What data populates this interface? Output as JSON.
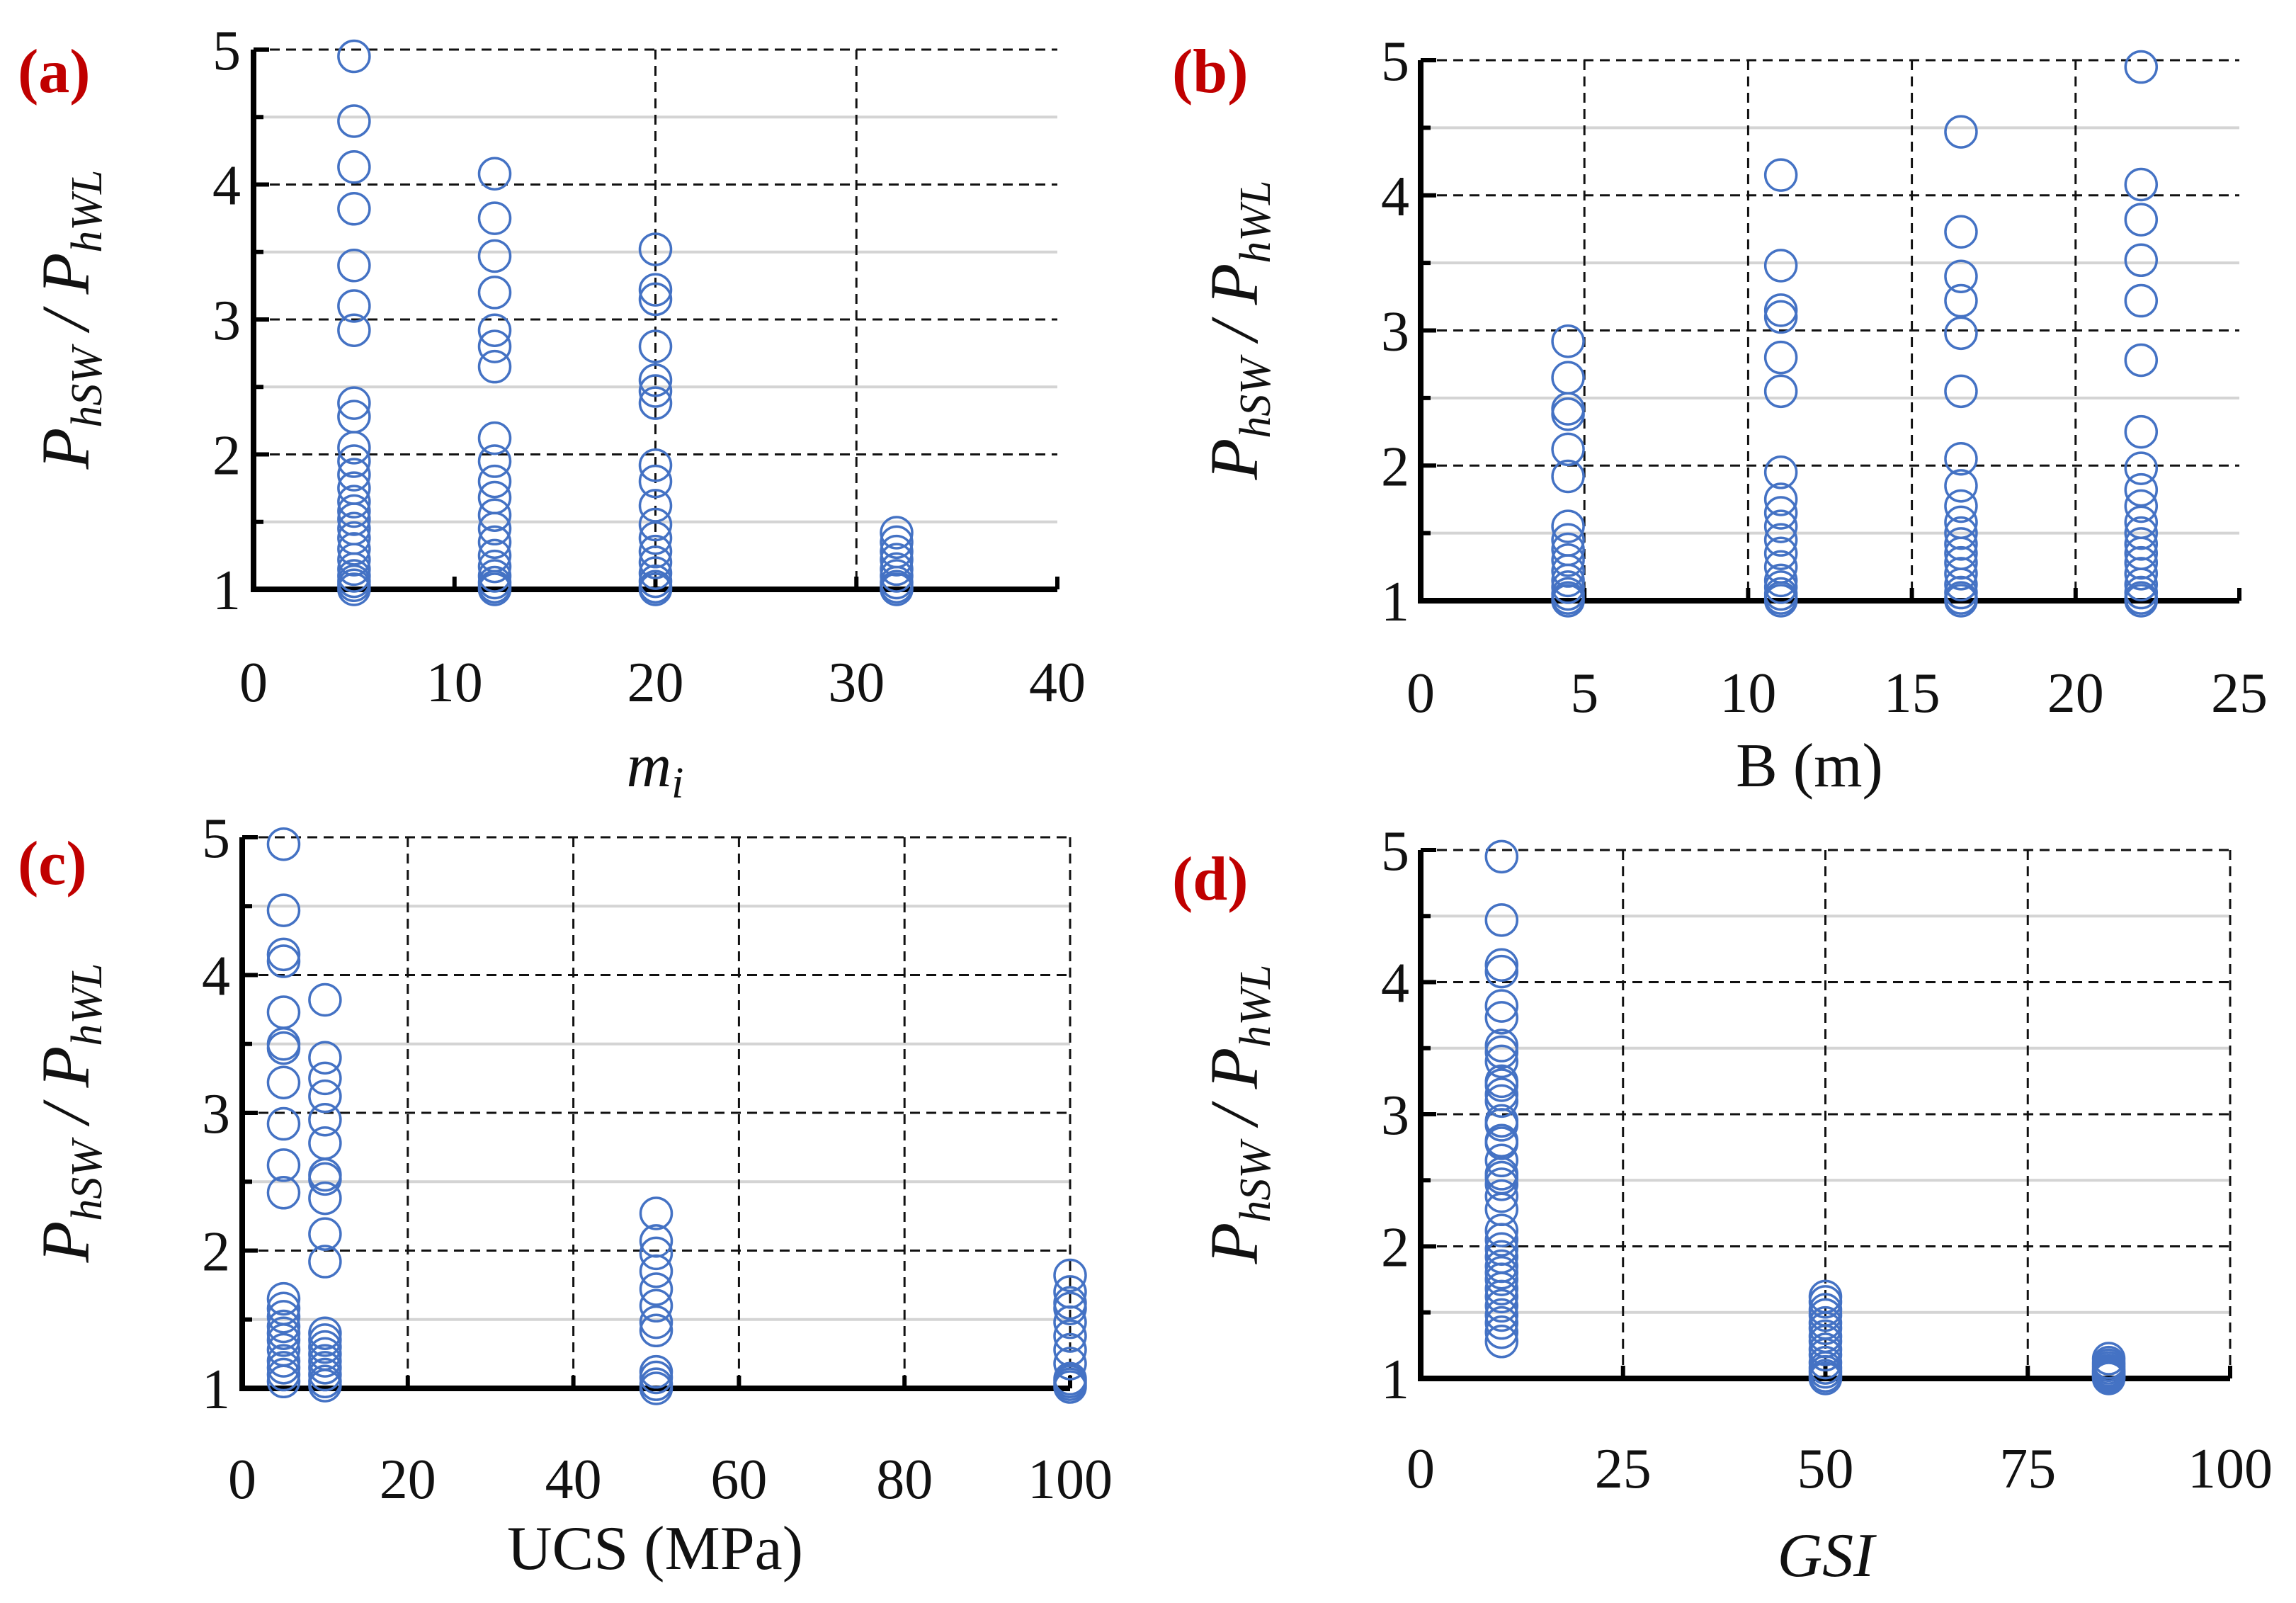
{
  "colors": {
    "marker": "#4472C4",
    "label": "#C00000",
    "axis": "#000000"
  },
  "chart_data": [
    {
      "id": "a",
      "type": "scatter",
      "panel_label": "(a)",
      "xlabel": "m",
      "xlabel_sub": "i",
      "xlabel_italic": true,
      "ylabel": {
        "p1": "P",
        "s1": "hSW",
        "sep": " / ",
        "p2": "P",
        "s2": "hWL"
      },
      "xlim": [
        0,
        40
      ],
      "ylim": [
        1,
        5
      ],
      "xticks": [
        0,
        10,
        20,
        30,
        40
      ],
      "yticks": [
        1,
        2,
        3,
        4,
        5
      ],
      "xgrid": [
        20,
        30
      ],
      "series": [
        {
          "x": 5,
          "y": [
            4.95,
            4.47,
            4.13,
            3.82,
            3.4,
            3.1,
            2.92,
            2.38,
            2.28,
            2.05,
            1.95,
            1.85,
            1.75,
            1.65,
            1.58,
            1.52,
            1.45,
            1.38,
            1.3,
            1.22,
            1.15,
            1.1,
            1.06,
            1.03,
            1.0
          ]
        },
        {
          "x": 12,
          "y": [
            4.08,
            3.75,
            3.47,
            3.2,
            2.92,
            2.8,
            2.65,
            2.12,
            1.95,
            1.8,
            1.68,
            1.55,
            1.45,
            1.35,
            1.25,
            1.17,
            1.1,
            1.05,
            1.02,
            1.0
          ]
        },
        {
          "x": 20,
          "y": [
            3.52,
            3.22,
            3.15,
            2.8,
            2.55,
            2.47,
            2.38,
            1.92,
            1.8,
            1.62,
            1.48,
            1.38,
            1.28,
            1.2,
            1.12,
            1.06,
            1.02,
            1.0
          ]
        },
        {
          "x": 32,
          "y": [
            1.42,
            1.35,
            1.28,
            1.22,
            1.15,
            1.1,
            1.05,
            1.02,
            1.0
          ]
        }
      ]
    },
    {
      "id": "b",
      "type": "scatter",
      "panel_label": "(b)",
      "xlabel": "B (m)",
      "xlabel_sub": "",
      "xlabel_italic": false,
      "ylabel": {
        "p1": "P",
        "s1": "hSW",
        "sep": " / ",
        "p2": "P",
        "s2": "hWL"
      },
      "xlim": [
        0,
        25
      ],
      "ylim": [
        1,
        5
      ],
      "xticks": [
        0,
        5,
        10,
        15,
        20,
        25
      ],
      "yticks": [
        1,
        2,
        3,
        4,
        5
      ],
      "xgrid": [
        5,
        10,
        15,
        20
      ],
      "series": [
        {
          "x": 4.5,
          "y": [
            2.92,
            2.65,
            2.42,
            2.38,
            2.12,
            1.92,
            1.55,
            1.45,
            1.38,
            1.3,
            1.22,
            1.15,
            1.1,
            1.05,
            1.02,
            1.0
          ]
        },
        {
          "x": 11,
          "y": [
            4.15,
            3.48,
            3.15,
            3.1,
            2.8,
            2.55,
            1.95,
            1.75,
            1.65,
            1.55,
            1.45,
            1.35,
            1.25,
            1.15,
            1.1,
            1.05,
            1.02,
            1.0
          ]
        },
        {
          "x": 16.5,
          "y": [
            4.47,
            3.73,
            3.4,
            3.22,
            2.98,
            2.55,
            2.05,
            1.85,
            1.7,
            1.58,
            1.5,
            1.42,
            1.35,
            1.28,
            1.2,
            1.12,
            1.06,
            1.02,
            1.0
          ]
        },
        {
          "x": 22,
          "y": [
            4.95,
            4.08,
            3.82,
            3.52,
            3.22,
            2.78,
            2.25,
            1.98,
            1.82,
            1.7,
            1.58,
            1.5,
            1.42,
            1.35,
            1.28,
            1.2,
            1.12,
            1.06,
            1.02,
            1.0
          ]
        }
      ]
    },
    {
      "id": "c",
      "type": "scatter",
      "panel_label": "(c)",
      "xlabel": "UCS (MPa)",
      "xlabel_sub": "",
      "xlabel_italic": false,
      "ylabel": {
        "p1": "P",
        "s1": "hSW",
        "sep": " / ",
        "p2": "P",
        "s2": "hWL"
      },
      "xlim": [
        0,
        100
      ],
      "ylim": [
        1,
        5
      ],
      "xticks": [
        0,
        20,
        40,
        60,
        80,
        100
      ],
      "yticks": [
        1,
        2,
        3,
        4,
        5
      ],
      "xgrid": [
        20,
        40,
        60,
        80,
        100
      ],
      "series": [
        {
          "x": 5,
          "y": [
            4.95,
            4.47,
            4.15,
            4.1,
            3.73,
            3.5,
            3.47,
            3.22,
            2.92,
            2.62,
            2.42,
            1.65,
            1.58,
            1.52,
            1.45,
            1.4,
            1.35,
            1.28,
            1.2,
            1.15,
            1.1,
            1.05
          ]
        },
        {
          "x": 10,
          "y": [
            3.82,
            3.4,
            3.25,
            3.12,
            2.95,
            2.78,
            2.55,
            2.52,
            2.38,
            2.12,
            1.92,
            1.4,
            1.35,
            1.3,
            1.25,
            1.2,
            1.15,
            1.1,
            1.05,
            1.02
          ]
        },
        {
          "x": 50,
          "y": [
            2.27,
            2.07,
            1.98,
            1.85,
            1.72,
            1.6,
            1.48,
            1.42,
            1.12,
            1.08,
            1.03,
            1.0
          ]
        },
        {
          "x": 100,
          "y": [
            1.82,
            1.7,
            1.62,
            1.58,
            1.48,
            1.38,
            1.28,
            1.18,
            1.07,
            1.05,
            1.03,
            1.01
          ]
        }
      ]
    },
    {
      "id": "d",
      "type": "scatter",
      "panel_label": "(d)",
      "xlabel": "GSI",
      "xlabel_sub": "",
      "xlabel_italic": true,
      "ylabel": {
        "p1": "P",
        "s1": "hSW",
        "sep": " / ",
        "p2": "P",
        "s2": "hWL"
      },
      "xlim": [
        0,
        100
      ],
      "ylim": [
        1,
        5
      ],
      "xticks": [
        0,
        25,
        50,
        75,
        100
      ],
      "yticks": [
        1,
        2,
        3,
        4,
        5
      ],
      "xgrid": [
        25,
        50,
        75,
        100
      ],
      "series": [
        {
          "x": 10,
          "y": [
            4.95,
            4.47,
            4.13,
            4.08,
            3.82,
            3.73,
            3.52,
            3.47,
            3.4,
            3.25,
            3.22,
            3.15,
            3.1,
            2.95,
            2.92,
            2.8,
            2.78,
            2.65,
            2.55,
            2.52,
            2.47,
            2.38,
            2.28,
            2.12,
            2.05,
            1.98,
            1.92,
            1.85,
            1.8,
            1.75,
            1.68,
            1.62,
            1.55,
            1.48,
            1.42,
            1.35,
            1.28
          ]
        },
        {
          "x": 50,
          "y": [
            1.62,
            1.58,
            1.52,
            1.48,
            1.42,
            1.38,
            1.32,
            1.28,
            1.22,
            1.18,
            1.12,
            1.08,
            1.05,
            1.02,
            1.0
          ]
        },
        {
          "x": 85,
          "y": [
            1.15,
            1.12,
            1.1,
            1.08,
            1.06,
            1.05,
            1.04,
            1.03,
            1.02,
            1.01,
            1.0
          ]
        }
      ]
    }
  ]
}
